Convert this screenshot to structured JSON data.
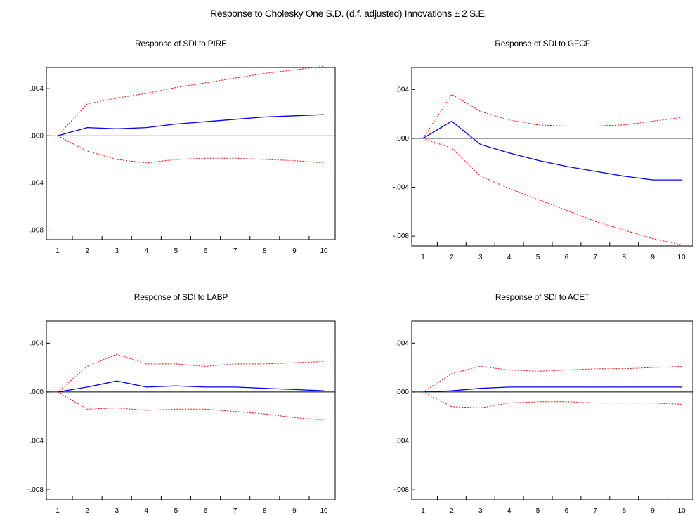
{
  "figure_title": "Response to Cholesky One S.D. (d.f. adjusted) Innovations ± 2 S.E.",
  "colors": {
    "response": "#0000ff",
    "bands": "#ff0000",
    "zero_line": "#000000"
  },
  "chart_data": [
    {
      "type": "line",
      "title": "Response of SDI to PIRE",
      "x": [
        1,
        2,
        3,
        4,
        5,
        6,
        7,
        8,
        9,
        10
      ],
      "xticks": [
        "1",
        "2",
        "3",
        "4",
        "5",
        "6",
        "7",
        "8",
        "9",
        "10"
      ],
      "yticks": [
        ".004",
        ".000",
        "-.004",
        "-.008"
      ],
      "ylim": [
        -0.0088,
        0.0058
      ],
      "series": [
        {
          "role": "response",
          "values": [
            0.0,
            0.0007,
            0.0006,
            0.0007,
            0.001,
            0.0012,
            0.0014,
            0.0016,
            0.0017,
            0.0018
          ]
        },
        {
          "role": "upper",
          "values": [
            0.0,
            0.0027,
            0.0032,
            0.0036,
            0.0041,
            0.0045,
            0.0049,
            0.0053,
            0.0056,
            0.0059
          ]
        },
        {
          "role": "lower",
          "values": [
            0.0,
            -0.0013,
            -0.002,
            -0.0023,
            -0.002,
            -0.0019,
            -0.0019,
            -0.002,
            -0.0021,
            -0.0023
          ]
        }
      ]
    },
    {
      "type": "line",
      "title": "Response of SDI to GFCF",
      "x": [
        1,
        2,
        3,
        4,
        5,
        6,
        7,
        8,
        9,
        10
      ],
      "xticks": [
        "1",
        "2",
        "3",
        "4",
        "5",
        "6",
        "7",
        "8",
        "9",
        "10"
      ],
      "yticks": [
        ".004",
        ".000",
        "-.004",
        "-.008"
      ],
      "ylim": [
        -0.0088,
        0.0058
      ],
      "series": [
        {
          "role": "response",
          "values": [
            0.0,
            0.0014,
            -0.0005,
            -0.0012,
            -0.0018,
            -0.0023,
            -0.0027,
            -0.0031,
            -0.0034,
            -0.0034
          ]
        },
        {
          "role": "upper",
          "values": [
            0.0,
            0.0036,
            0.0022,
            0.0015,
            0.0011,
            0.001,
            0.001,
            0.0011,
            0.0014,
            0.0017
          ]
        },
        {
          "role": "lower",
          "values": [
            0.0,
            -0.0008,
            -0.0031,
            -0.0041,
            -0.005,
            -0.0059,
            -0.0068,
            -0.0075,
            -0.0082,
            -0.0087
          ]
        }
      ]
    },
    {
      "type": "line",
      "title": "Response of SDI to LABP",
      "x": [
        1,
        2,
        3,
        4,
        5,
        6,
        7,
        8,
        9,
        10
      ],
      "xticks": [
        "1",
        "2",
        "3",
        "4",
        "5",
        "6",
        "7",
        "8",
        "9",
        "10"
      ],
      "yticks": [
        ".004",
        ".000",
        "-.004",
        "-.008"
      ],
      "ylim": [
        -0.0088,
        0.0058
      ],
      "series": [
        {
          "role": "response",
          "values": [
            0.0,
            0.0004,
            0.0009,
            0.0004,
            0.0005,
            0.0004,
            0.0004,
            0.0003,
            0.0002,
            0.0001
          ]
        },
        {
          "role": "upper",
          "values": [
            0.0,
            0.0021,
            0.0031,
            0.0023,
            0.0023,
            0.0021,
            0.0023,
            0.0023,
            0.0024,
            0.0025
          ]
        },
        {
          "role": "lower",
          "values": [
            0.0,
            -0.0014,
            -0.0013,
            -0.0015,
            -0.0014,
            -0.0014,
            -0.0016,
            -0.0018,
            -0.0021,
            -0.0023
          ]
        }
      ]
    },
    {
      "type": "line",
      "title": "Response of SDI to ACET",
      "x": [
        1,
        2,
        3,
        4,
        5,
        6,
        7,
        8,
        9,
        10
      ],
      "xticks": [
        "1",
        "2",
        "3",
        "4",
        "5",
        "6",
        "7",
        "8",
        "9",
        "10"
      ],
      "yticks": [
        ".004",
        ".000",
        "-.004",
        "-.008"
      ],
      "ylim": [
        -0.0088,
        0.0058
      ],
      "series": [
        {
          "role": "response",
          "values": [
            0.0,
            0.0001,
            0.0003,
            0.0004,
            0.0004,
            0.0004,
            0.0004,
            0.0004,
            0.0004,
            0.0004
          ]
        },
        {
          "role": "upper",
          "values": [
            0.0,
            0.0015,
            0.0021,
            0.0018,
            0.0017,
            0.0018,
            0.0019,
            0.0019,
            0.002,
            0.0021
          ]
        },
        {
          "role": "lower",
          "values": [
            0.0,
            -0.0012,
            -0.0013,
            -0.0009,
            -0.0008,
            -0.0008,
            -0.0009,
            -0.0009,
            -0.0009,
            -0.001
          ]
        }
      ]
    }
  ]
}
